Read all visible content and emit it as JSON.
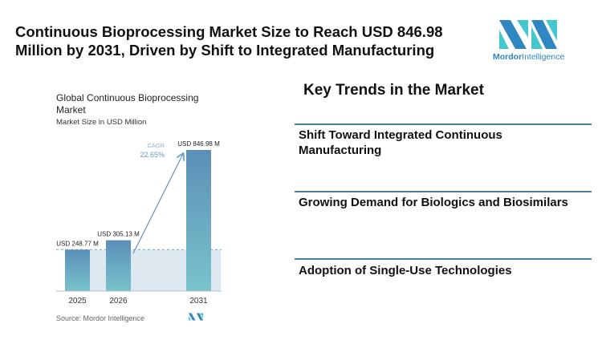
{
  "header": {
    "title": "Continuous Bioprocessing Market Size to Reach USD 846.98 Million by 2031, Driven by Shift to Integrated Manufacturing",
    "logo_text": [
      "Mordor",
      "Intelligence"
    ]
  },
  "chart_data": {
    "type": "bar",
    "title": "Global Continuous Bioprocessing Market",
    "subtitle": "Market Size in USD Million",
    "categories": [
      "2025",
      "2026",
      "2031"
    ],
    "values": [
      248.77,
      305.13,
      846.98
    ],
    "data_labels": [
      "USD 248.77 M",
      "USD 305.13 M",
      "USD 846.98 M"
    ],
    "annotation": {
      "label": "CAGR",
      "value": "22.65%"
    },
    "source": "Source: Mordor Intelligence",
    "colors": {
      "bar_top": "#5b8fb8",
      "bar_bottom": "#79c3cc",
      "shade": "#dde8f0",
      "arrow": "#6a9cc0"
    }
  },
  "trends": {
    "title": "Key Trends in the Market",
    "items": [
      "Shift Toward Integrated Continuous Manufacturing",
      "Growing Demand for Biologics and Biosimilars",
      "Adoption of Single-Use Technologies"
    ]
  }
}
